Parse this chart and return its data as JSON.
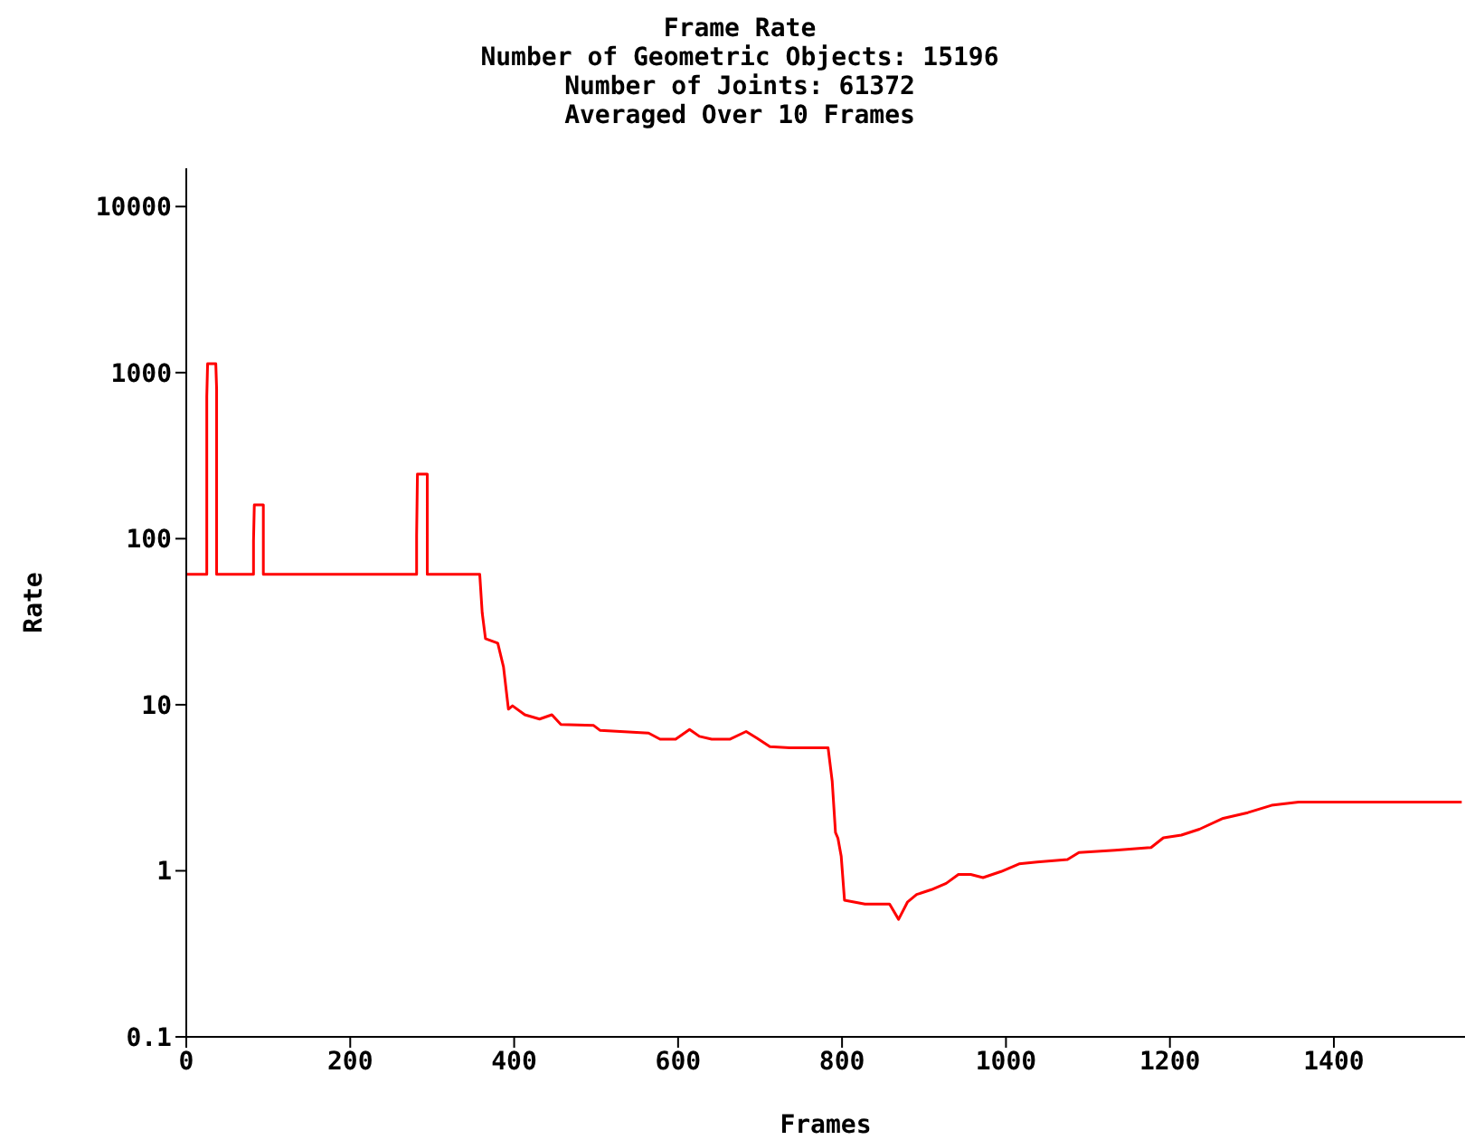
{
  "chart_data": {
    "type": "line",
    "title": "Frame Rate",
    "subtitle": "Number of Geometric Objects: 15196\nNumber of Joints: 61372\nAveraged Over 10 Frames",
    "xlabel": "Frames",
    "ylabel": "Rate",
    "log": "y",
    "grid": false,
    "legend": false,
    "marker": "none",
    "line_style": "solid",
    "xlim": [
      0,
      1560
    ],
    "xticks": [
      0,
      200,
      400,
      600,
      800,
      1000,
      1200,
      1400
    ],
    "ylim": [
      0.1,
      17000
    ],
    "yticks": [
      0.1,
      1,
      10,
      100,
      1000,
      10000
    ],
    "series": [
      {
        "color": "#ff0000",
        "x": [
          0,
          25,
          25,
          26,
          36,
          37,
          37,
          82,
          82,
          83,
          94,
          94,
          281,
          281,
          282,
          294,
          294,
          354,
          358,
          361,
          365,
          380,
          387,
          393,
          398,
          413,
          431,
          446,
          457,
          497,
          505,
          564,
          578,
          597,
          614,
          626,
          641,
          663,
          683,
          696,
          712,
          736,
          783,
          788,
          792,
          795,
          799,
          803,
          828,
          858,
          869,
          880,
          891,
          909,
          927,
          942,
          957,
          972,
          994,
          1016,
          1038,
          1075,
          1089,
          1133,
          1177,
          1192,
          1214,
          1236,
          1265,
          1295,
          1324,
          1357,
          1556
        ],
        "values": [
          61,
          61,
          720,
          1130,
          1130,
          800,
          61,
          61,
          97,
          160,
          160,
          61,
          61,
          105,
          245,
          245,
          61,
          61,
          61,
          35.8,
          25,
          23.5,
          16.9,
          9.4,
          9.85,
          8.7,
          8.2,
          8.7,
          7.6,
          7.5,
          7.0,
          6.75,
          6.2,
          6.2,
          7.1,
          6.45,
          6.2,
          6.2,
          6.9,
          6.3,
          5.6,
          5.5,
          5.5,
          3.46,
          1.7,
          1.57,
          1.22,
          0.665,
          0.63,
          0.63,
          0.51,
          0.65,
          0.72,
          0.77,
          0.84,
          0.95,
          0.95,
          0.91,
          0.99,
          1.1,
          1.13,
          1.17,
          1.29,
          1.33,
          1.38,
          1.58,
          1.64,
          1.78,
          2.07,
          2.24,
          2.48,
          2.59,
          2.59
        ]
      }
    ]
  }
}
